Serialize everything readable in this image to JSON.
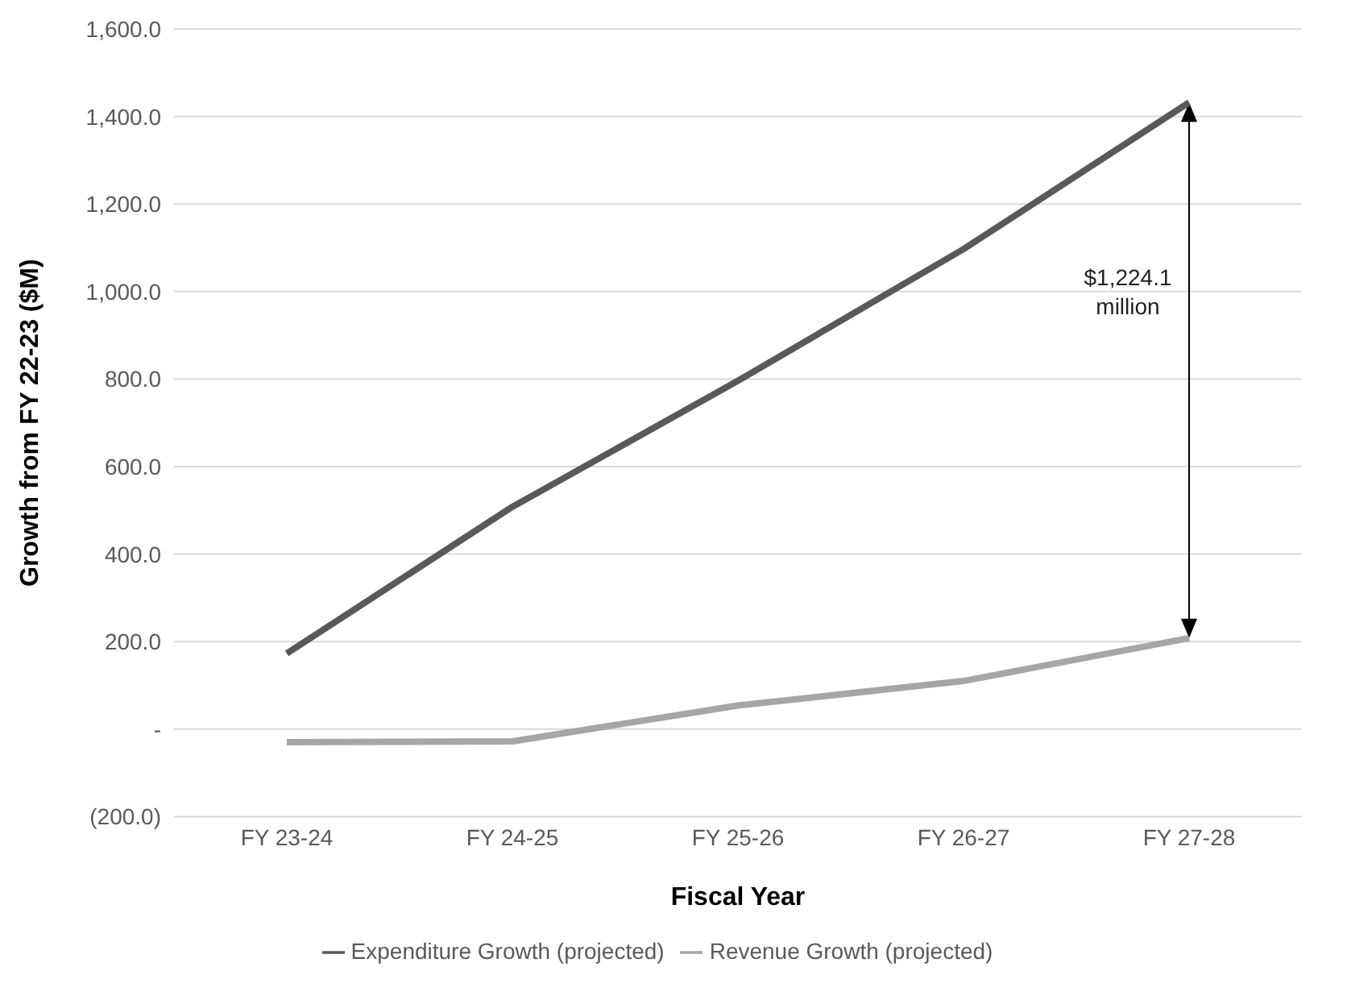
{
  "chart_data": {
    "type": "line",
    "xlabel": "Fiscal Year",
    "ylabel": "Growth from FY 22-23 ($M)",
    "categories": [
      "FY 23-24",
      "FY 24-25",
      "FY 25-26",
      "FY 26-27",
      "FY 27-28"
    ],
    "series": [
      {
        "name": "Expenditure Growth (projected)",
        "color": "#595959",
        "values": [
          173,
          508,
          796,
          1097,
          1432
        ]
      },
      {
        "name": "Revenue Growth (projected)",
        "color": "#a6a6a6",
        "values": [
          -30,
          -28,
          54,
          110,
          208
        ]
      }
    ],
    "ylim": [
      -200,
      1600
    ],
    "yticks": [
      {
        "value": -200,
        "label": "(200.0)"
      },
      {
        "value": 0,
        "label": "-"
      },
      {
        "value": 200,
        "label": "200.0"
      },
      {
        "value": 400,
        "label": "400.0"
      },
      {
        "value": 600,
        "label": "600.0"
      },
      {
        "value": 800,
        "label": "800.0"
      },
      {
        "value": 1000,
        "label": "1,000.0"
      },
      {
        "value": 1200,
        "label": "1,200.0"
      },
      {
        "value": 1400,
        "label": "1,400.0"
      },
      {
        "value": 1600,
        "label": "1,600.0"
      }
    ],
    "annotations": [
      "$1,224.1 million"
    ],
    "grid": "y",
    "legend": "bottom"
  }
}
